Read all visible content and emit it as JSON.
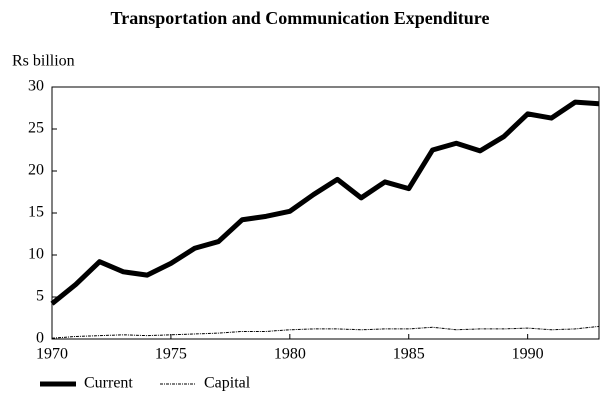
{
  "chart_data": {
    "type": "line",
    "title": "Transportation and Communication Expenditure",
    "y_label": "Rs billion",
    "x": [
      1970,
      1971,
      1972,
      1973,
      1974,
      1975,
      1976,
      1977,
      1978,
      1979,
      1980,
      1981,
      1982,
      1983,
      1984,
      1985,
      1986,
      1987,
      1988,
      1989,
      1990,
      1991,
      1992,
      1993
    ],
    "series": [
      {
        "name": "Current",
        "color": "#000000",
        "values": [
          4.2,
          6.5,
          9.2,
          8.0,
          7.6,
          9.0,
          10.8,
          11.6,
          14.2,
          14.6,
          15.2,
          17.2,
          19.0,
          16.8,
          18.7,
          17.9,
          22.5,
          23.3,
          22.4,
          24.1,
          26.8,
          26.3,
          28.2,
          28.0
        ]
      },
      {
        "name": "Capital",
        "color": "#000000",
        "values": [
          0.1,
          0.3,
          0.4,
          0.5,
          0.4,
          0.5,
          0.6,
          0.7,
          0.9,
          0.9,
          1.1,
          1.2,
          1.2,
          1.1,
          1.2,
          1.2,
          1.4,
          1.1,
          1.2,
          1.2,
          1.3,
          1.1,
          1.2,
          1.5
        ]
      }
    ],
    "xlim": [
      1970,
      1993
    ],
    "xticks": [
      1970,
      1975,
      1980,
      1985,
      1990
    ],
    "ylim": [
      0,
      30
    ],
    "yticks": [
      0,
      5,
      10,
      15,
      20,
      25,
      30
    ],
    "grid": false
  }
}
